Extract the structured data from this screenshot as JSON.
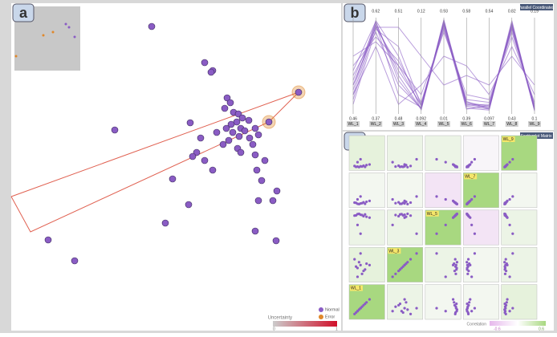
{
  "panels": {
    "a": "a",
    "b": "b",
    "c": "c"
  },
  "projection": {
    "type": "scatter",
    "series": [
      {
        "name": "Normal",
        "color": "#8a5cc4",
        "x": [
          175,
          241,
          251,
          249,
          269,
          273,
          266,
          277,
          283,
          288,
          281,
          296,
          274,
          286,
          291,
          276,
          304,
          268,
          284,
          297,
          271,
          308,
          301,
          282,
          264,
          256,
          223,
          129,
          236,
          231,
          226,
          241,
          251,
          286,
          304,
          316,
          306,
          331,
          326,
          312,
          201,
          221,
          192,
          304,
          330,
          46,
          79,
          308
        ],
        "y": [
          29,
          74,
          84,
          86,
          118,
          124,
          131,
          136,
          138,
          143,
          148,
          146,
          151,
          156,
          159,
          161,
          156,
          156,
          166,
          168,
          171,
          164,
          176,
          181,
          176,
          161,
          149,
          158,
          168,
          186,
          191,
          196,
          208,
          186,
          189,
          196,
          208,
          234,
          246,
          221,
          219,
          251,
          274,
          284,
          296,
          295,
          321,
          246
        ]
      },
      {
        "name": "Error",
        "color": "#e0882a",
        "x": [
          358,
          321
        ],
        "y": [
          111,
          148
        ]
      }
    ],
    "uncertainty_label": "Uncertainty",
    "uncertainty_min": "0",
    "uncertainty_max": "1"
  },
  "parallel": {
    "title": "Parallel Coordinates",
    "axes": [
      "WL_1",
      "WL_2",
      "WL_3",
      "WL_4",
      "WL_5",
      "WL_6",
      "WL_7",
      "WL_8",
      "WL_9"
    ],
    "top_labels": [
      null,
      "0.62",
      "0.51",
      "0.12",
      "0.93",
      "0.58",
      "0.54",
      "0.82",
      "0.19"
    ],
    "bottom_labels": [
      "0.46",
      "0.37",
      "0.48",
      "0.092",
      "0.01",
      "0.39",
      "0.097",
      "0.43",
      "0.1"
    ],
    "color": "#8a5cc4",
    "lines": [
      [
        0.2,
        0.95,
        0.4,
        0.05,
        0.97,
        0.08,
        0.05,
        0.95,
        0.05
      ],
      [
        0.3,
        0.9,
        0.5,
        0.08,
        0.95,
        0.1,
        0.06,
        0.92,
        0.06
      ],
      [
        0.15,
        0.92,
        0.45,
        0.1,
        0.93,
        0.12,
        0.08,
        0.9,
        0.04
      ],
      [
        0.4,
        0.85,
        0.3,
        0.06,
        0.9,
        0.09,
        0.1,
        0.88,
        0.08
      ],
      [
        0.25,
        0.97,
        0.6,
        0.04,
        0.98,
        0.06,
        0.04,
        0.97,
        0.03
      ],
      [
        0.5,
        0.8,
        0.55,
        0.12,
        0.88,
        0.15,
        0.12,
        0.85,
        0.1
      ],
      [
        0.35,
        0.93,
        0.2,
        0.07,
        0.94,
        0.11,
        0.07,
        0.93,
        0.05
      ],
      [
        0.1,
        0.88,
        0.7,
        0.09,
        0.92,
        0.05,
        0.09,
        0.9,
        0.07
      ],
      [
        0.45,
        0.96,
        0.35,
        0.05,
        0.96,
        0.13,
        0.05,
        0.94,
        0.04
      ],
      [
        0.6,
        0.75,
        0.5,
        0.2,
        0.85,
        0.2,
        0.15,
        0.8,
        0.12
      ],
      [
        0.3,
        0.9,
        0.9,
        0.6,
        0.3,
        0.4,
        0.3,
        0.6,
        0.3
      ],
      [
        0.2,
        0.7,
        0.1,
        0.3,
        0.6,
        0.5,
        0.2,
        0.7,
        0.2
      ]
    ]
  },
  "splom": {
    "title": "Scatterplot Matrix",
    "labels": [
      "WL_9",
      "WL_7",
      "WL_5",
      "WL_3",
      "WL_1"
    ],
    "correlation": [
      [
        0.15,
        0.1,
        0.1,
        -0.05,
        1
      ],
      [
        0.05,
        0.05,
        -0.2,
        1,
        0.05
      ],
      [
        0.1,
        0.1,
        1,
        -0.2,
        0.1
      ],
      [
        0.15,
        1,
        0.1,
        0.05,
        0.1
      ],
      [
        1,
        0.1,
        0.05,
        0.05,
        0.15
      ]
    ],
    "correlation_label": "Correlation",
    "corr_min": "-0.6",
    "corr_max": "0.6"
  }
}
